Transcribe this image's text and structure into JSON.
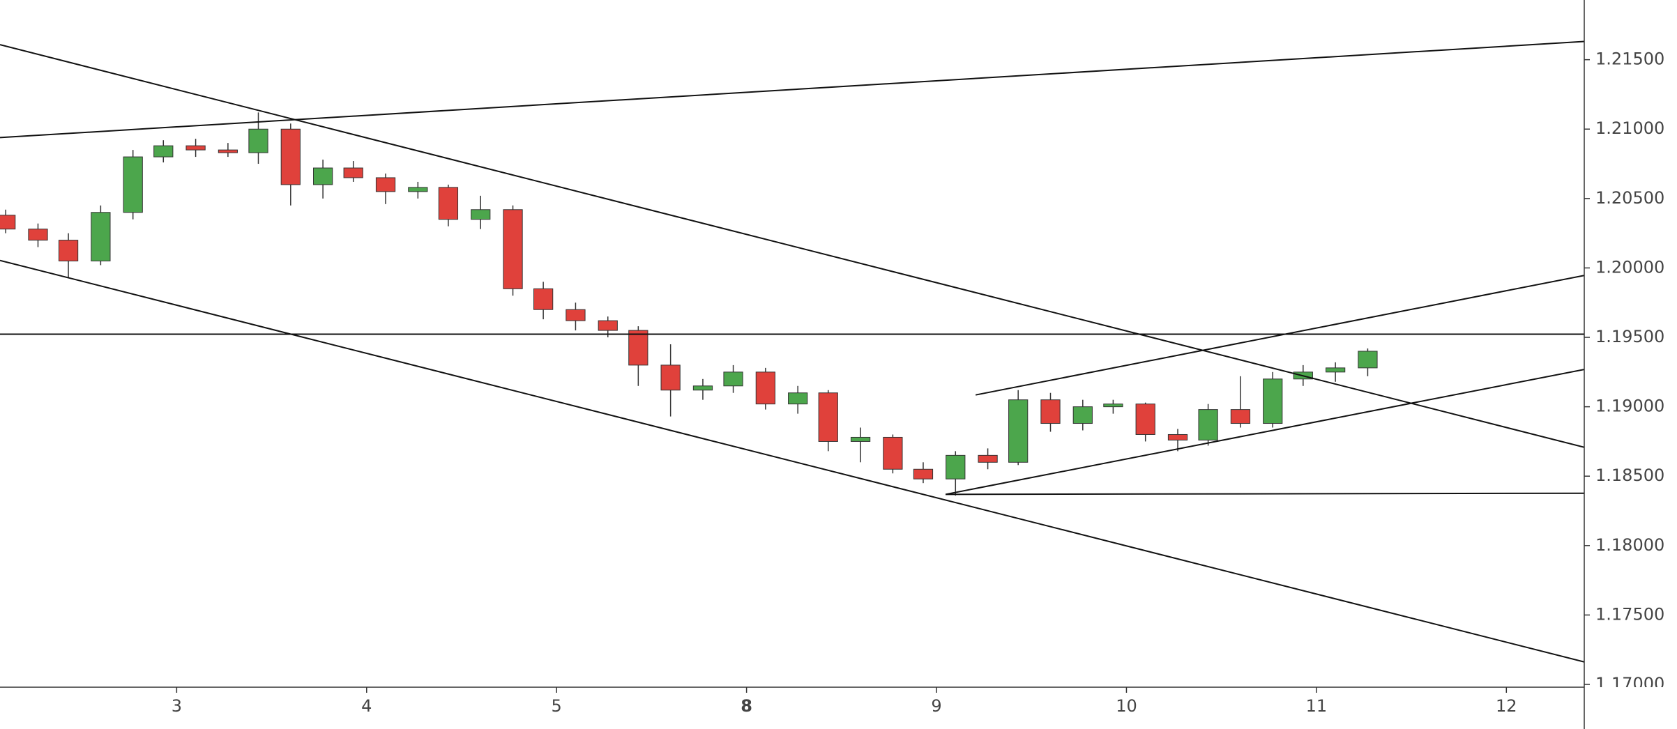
{
  "chart_data": {
    "type": "candlestick",
    "x": [
      -0.9,
      -0.73,
      -0.57,
      -0.4,
      -0.23,
      -0.07,
      0.1,
      0.27,
      0.43,
      0.6,
      0.77,
      0.93,
      1.1,
      1.27,
      1.43,
      1.6,
      1.77,
      1.93,
      2.1,
      2.27,
      2.43,
      2.6,
      2.77,
      2.93,
      3.1,
      3.27,
      3.43,
      3.6,
      3.77,
      3.93,
      4.1,
      4.27,
      4.43,
      4.6,
      4.77,
      4.93,
      5.1,
      5.27,
      5.43,
      5.6,
      5.77,
      5.93,
      6.1,
      6.27
    ],
    "series": [
      {
        "up_color": "#4ca64c",
        "down_color": "#e0413b",
        "open": [
          1.2038,
          1.2028,
          1.202,
          1.2005,
          1.204,
          1.208,
          1.2088,
          1.2085,
          1.2083,
          1.21,
          1.206,
          1.2072,
          1.2065,
          1.2055,
          1.2058,
          1.2035,
          1.2042,
          1.1985,
          1.197,
          1.1962,
          1.1955,
          1.193,
          1.1912,
          1.1915,
          1.1925,
          1.1902,
          1.191,
          1.1875,
          1.1878,
          1.1855,
          1.1848,
          1.1865,
          1.186,
          1.1905,
          1.1888,
          1.19,
          1.1902,
          1.188,
          1.1876,
          1.1898,
          1.1888,
          1.192,
          1.1925,
          1.1928
        ],
        "high": [
          1.2042,
          1.2032,
          1.2025,
          1.2045,
          1.2085,
          1.2092,
          1.2093,
          1.209,
          1.2112,
          1.2104,
          1.2078,
          1.2077,
          1.2068,
          1.2062,
          1.206,
          1.2052,
          1.2045,
          1.199,
          1.1975,
          1.1965,
          1.1958,
          1.1945,
          1.192,
          1.193,
          1.1928,
          1.1915,
          1.1912,
          1.1885,
          1.188,
          1.186,
          1.1868,
          1.187,
          1.1912,
          1.191,
          1.1905,
          1.1905,
          1.1903,
          1.1884,
          1.1902,
          1.1922,
          1.1925,
          1.193,
          1.1932,
          1.1942
        ],
        "low": [
          1.2025,
          1.2015,
          1.1993,
          1.2002,
          1.2035,
          1.2076,
          1.208,
          1.208,
          1.2075,
          1.2045,
          1.205,
          1.2062,
          1.2046,
          1.205,
          1.203,
          1.2028,
          1.198,
          1.1963,
          1.1955,
          1.195,
          1.1915,
          1.1893,
          1.1905,
          1.191,
          1.1898,
          1.1895,
          1.1868,
          1.186,
          1.1852,
          1.1845,
          1.1836,
          1.1855,
          1.1858,
          1.1882,
          1.1883,
          1.1895,
          1.1875,
          1.1868,
          1.1872,
          1.1885,
          1.1885,
          1.1915,
          1.1918,
          1.1922
        ],
        "close": [
          1.2028,
          1.202,
          1.2005,
          1.204,
          1.208,
          1.2088,
          1.2085,
          1.2083,
          1.21,
          1.206,
          1.2072,
          1.2065,
          1.2055,
          1.2058,
          1.2035,
          1.2042,
          1.1985,
          1.197,
          1.1962,
          1.1955,
          1.193,
          1.1912,
          1.1915,
          1.1925,
          1.1902,
          1.191,
          1.1875,
          1.1878,
          1.1855,
          1.1848,
          1.1865,
          1.186,
          1.1905,
          1.1888,
          1.19,
          1.1902,
          1.188,
          1.1876,
          1.1898,
          1.1888,
          1.192,
          1.1925,
          1.1928,
          1.194
        ]
      }
    ],
    "lines": [
      {
        "x": [
          -0.93,
          7.41
        ],
        "y": [
          1.20939,
          1.21631
        ]
      },
      {
        "x": [
          -0.93,
          7.41
        ],
        "y": [
          1.21608,
          1.18708
        ]
      },
      {
        "x": [
          -0.93,
          7.41
        ],
        "y": [
          1.20054,
          1.17162
        ]
      },
      {
        "x": [
          -0.93,
          7.41
        ],
        "y": [
          1.19523,
          1.19523
        ]
      },
      {
        "x": [
          4.206,
          7.41
        ],
        "y": [
          1.19085,
          1.19946
        ]
      },
      {
        "x": [
          4.048,
          7.41
        ],
        "y": [
          1.18369,
          1.19269
        ]
      },
      {
        "x": [
          4.048,
          7.41
        ],
        "y": [
          1.18369,
          1.18377
        ]
      }
    ],
    "xlim": [
      -0.93,
      7.41
    ],
    "xticks": [
      {
        "value": 0,
        "label": "3"
      },
      {
        "value": 1,
        "label": "4"
      },
      {
        "value": 2,
        "label": "5"
      },
      {
        "value": 3,
        "label": "8",
        "bold": true
      },
      {
        "value": 4,
        "label": "9"
      },
      {
        "value": 5,
        "label": "10"
      },
      {
        "value": 6,
        "label": "11"
      },
      {
        "value": 7,
        "label": "12"
      }
    ],
    "ylim": [
      1.1698,
      1.2193
    ],
    "yticks": [
      {
        "value": 1.17,
        "label": "1.17000"
      },
      {
        "value": 1.175,
        "label": "1.17500"
      },
      {
        "value": 1.18,
        "label": "1.18000"
      },
      {
        "value": 1.185,
        "label": "1.18500"
      },
      {
        "value": 1.19,
        "label": "1.19000"
      },
      {
        "value": 1.195,
        "label": "1.19500"
      },
      {
        "value": 1.2,
        "label": "1.20000"
      },
      {
        "value": 1.205,
        "label": "1.20500"
      },
      {
        "value": 1.21,
        "label": "1.21000"
      },
      {
        "value": 1.215,
        "label": "1.21500"
      }
    ],
    "grid": false
  }
}
